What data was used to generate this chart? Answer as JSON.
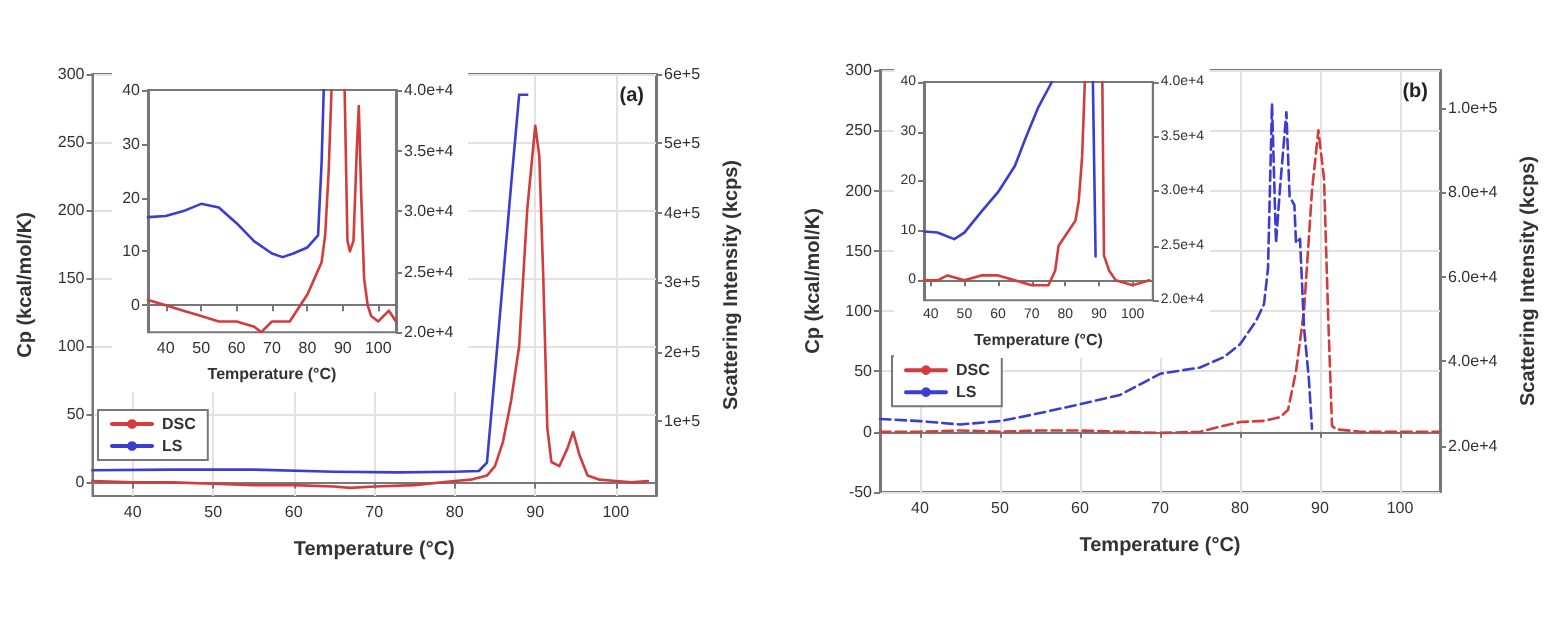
{
  "chart_data": [
    {
      "type": "line",
      "xlabel": "Temperature (°C)",
      "ylabel": "Cp (kcal/mol/K)",
      "y2label": "Scattering Intensity (kcps)",
      "annotations": [
        "(a)"
      ],
      "xlim": [
        35,
        105
      ],
      "xticks": [
        40,
        50,
        60,
        70,
        80,
        90,
        100
      ],
      "ylim": [
        -10,
        300
      ],
      "yticks": [
        0,
        50,
        100,
        150,
        200,
        250,
        300
      ],
      "y2lim": [
        -8000,
        600000
      ],
      "y2ticks": [
        {
          "value": 100000,
          "label": "1e+5"
        },
        {
          "value": 200000,
          "label": "2e+5"
        },
        {
          "value": 300000,
          "label": "3e+5"
        },
        {
          "value": 400000,
          "label": "4e+5"
        },
        {
          "value": 500000,
          "label": "5e+5"
        },
        {
          "value": 600000,
          "label": "6e+5"
        }
      ],
      "grid": true,
      "legend": "bottom left",
      "line_style": "solid",
      "series": [
        {
          "name": "DSC",
          "color": "#d23c3c",
          "x": [
            35,
            40,
            45,
            50,
            55,
            60,
            65,
            67,
            70,
            75,
            80,
            82,
            84,
            85,
            86,
            87,
            88,
            89,
            90,
            90.5,
            91,
            91.5,
            92,
            93,
            94,
            94.7,
            95.5,
            96.5,
            98,
            100,
            102,
            104
          ],
          "values": [
            1,
            0,
            0,
            -1,
            -2,
            -2,
            -3,
            -4,
            -3,
            -2,
            1,
            2,
            5,
            12,
            30,
            60,
            100,
            200,
            262,
            240,
            150,
            40,
            15,
            12,
            25,
            37,
            20,
            5,
            2,
            1,
            0,
            1
          ]
        },
        {
          "name": "LS",
          "color": "#3c3cd0",
          "axis": "y2",
          "x": [
            35,
            45,
            55,
            65,
            73,
            80,
            83,
            84,
            85,
            86,
            87,
            88,
            89
          ],
          "values": [
            29000,
            30000,
            30000,
            27000,
            26000,
            27000,
            28000,
            40000,
            170000,
            305000,
            440000,
            570000,
            570000
          ]
        }
      ]
    },
    {
      "type": "line",
      "xlabel": "Temperature (°C)",
      "xlim": [
        35,
        105
      ],
      "xticks": [
        40,
        50,
        60,
        70,
        80,
        90,
        100
      ],
      "ylim": [
        -5,
        40
      ],
      "yticks": [
        0,
        10,
        20,
        30,
        40
      ],
      "y2lim": [
        20000,
        40000
      ],
      "y2ticks": [
        {
          "value": 20000,
          "label": "2.0e+4"
        },
        {
          "value": 25000,
          "label": "2.5e+4"
        },
        {
          "value": 30000,
          "label": "3.0e+4"
        },
        {
          "value": 35000,
          "label": "3.5e+4"
        },
        {
          "value": 40000,
          "label": "4.0e+4"
        }
      ],
      "line_style": "solid",
      "series": [
        {
          "color": "#d23c3c",
          "x": [
            35,
            40,
            45,
            50,
            55,
            60,
            65,
            67,
            70,
            75,
            78,
            80,
            82,
            84,
            85,
            86,
            86.8,
            88,
            90.5,
            91.3,
            92,
            93,
            94,
            94.5,
            95.2,
            96,
            97,
            98,
            100,
            103,
            105
          ],
          "values": [
            1,
            0,
            -1,
            -2,
            -3,
            -3,
            -4,
            -5,
            -3,
            -3,
            0,
            2,
            5,
            8,
            13,
            25,
            40,
            null,
            40,
            12,
            10,
            12,
            30,
            37,
            20,
            5,
            0,
            -2,
            -3,
            -1,
            -3
          ]
        },
        {
          "color": "#3c3cd0",
          "axis": "y2",
          "x": [
            35,
            40,
            45,
            50,
            55,
            60,
            65,
            70,
            73,
            76,
            80,
            83,
            84,
            84.6
          ],
          "values": [
            29500,
            29600,
            30000,
            30600,
            30300,
            29000,
            27500,
            26500,
            26200,
            26500,
            27000,
            28000,
            34000,
            40000
          ]
        }
      ]
    },
    {
      "type": "line",
      "xlabel": "Temperature (°C)",
      "ylabel": "Cp (kcal/mol/K)",
      "y2label": "Scattering Intensity (kcps)",
      "annotations": [
        "(b)"
      ],
      "xlim": [
        35,
        105
      ],
      "xticks": [
        40,
        50,
        60,
        70,
        80,
        90,
        100
      ],
      "ylim": [
        -50,
        300
      ],
      "yticks": [
        -50,
        0,
        50,
        100,
        150,
        200,
        250,
        300
      ],
      "y2lim": [
        9000,
        109000
      ],
      "y2ticks": [
        {
          "value": 20000,
          "label": "2.0e+4"
        },
        {
          "value": 40000,
          "label": "4.0e+4"
        },
        {
          "value": 60000,
          "label": "6.0e+4"
        },
        {
          "value": 80000,
          "label": "8.0e+4"
        },
        {
          "value": 100000,
          "label": "1.0e+5"
        }
      ],
      "grid": true,
      "legend": "left",
      "line_style": "dashed",
      "series": [
        {
          "name": "DSC",
          "color": "#d23c3c",
          "x": [
            35,
            40,
            45,
            50,
            55,
            60,
            65,
            70,
            75,
            78,
            80,
            83,
            85,
            86,
            87,
            88,
            89,
            89.8,
            90.5,
            91,
            91.5,
            92,
            95,
            100,
            105
          ],
          "values": [
            0,
            0,
            1,
            0,
            1,
            1,
            0,
            -1,
            0,
            5,
            8,
            9,
            12,
            18,
            50,
            100,
            200,
            250,
            210,
            100,
            5,
            2,
            0,
            0,
            0
          ]
        },
        {
          "name": "LS",
          "color": "#3c3cd0",
          "axis": "y2",
          "x": [
            35,
            40,
            45,
            50,
            55,
            60,
            65,
            68,
            70,
            75,
            78,
            80,
            82,
            83,
            83.5,
            84,
            84.5,
            85,
            85.8,
            86.2,
            86.8,
            87,
            87.5,
            88,
            88.6,
            89
          ],
          "values": [
            26300,
            25800,
            25000,
            25800,
            27700,
            29800,
            32000,
            35000,
            37000,
            38500,
            41000,
            44000,
            49500,
            53500,
            62000,
            101000,
            68000,
            81000,
            99000,
            79000,
            77000,
            68000,
            69000,
            48000,
            36000,
            24000
          ]
        }
      ]
    },
    {
      "type": "line",
      "xlabel": "Temperature (°C)",
      "xlim": [
        38,
        106
      ],
      "xticks": [
        40,
        50,
        60,
        70,
        80,
        90,
        100
      ],
      "ylim": [
        -4,
        40
      ],
      "yticks": [
        0,
        10,
        20,
        30,
        40
      ],
      "y2lim": [
        20000,
        40000
      ],
      "y2ticks": [
        {
          "value": 20000,
          "label": "2.0e+4"
        },
        {
          "value": 25000,
          "label": "2.5e+4"
        },
        {
          "value": 30000,
          "label": "3.0e+4"
        },
        {
          "value": 35000,
          "label": "3.5e+4"
        },
        {
          "value": 40000,
          "label": "4.0e+4"
        }
      ],
      "line_style": "solid",
      "series": [
        {
          "color": "#d23c3c",
          "x": [
            38,
            42,
            45,
            50,
            55,
            60,
            65,
            70,
            75,
            77,
            78,
            80,
            83,
            84,
            85,
            85.8,
            88,
            91,
            91.5,
            93,
            95,
            100,
            105
          ],
          "values": [
            0,
            0,
            1,
            0,
            1,
            1,
            0,
            -1,
            -1,
            2,
            7,
            9,
            12,
            16,
            25,
            40,
            null,
            40,
            5,
            2,
            0,
            -1,
            0
          ]
        },
        {
          "color": "#3c3cd0",
          "axis": "y2",
          "x": [
            38,
            42,
            47,
            50,
            55,
            60,
            65,
            68,
            72,
            76,
            82,
            88.2,
            89
          ],
          "values": [
            26300,
            26200,
            25600,
            26200,
            28100,
            29900,
            32300,
            34700,
            37700,
            40000,
            null,
            40000,
            24000
          ]
        }
      ]
    }
  ]
}
